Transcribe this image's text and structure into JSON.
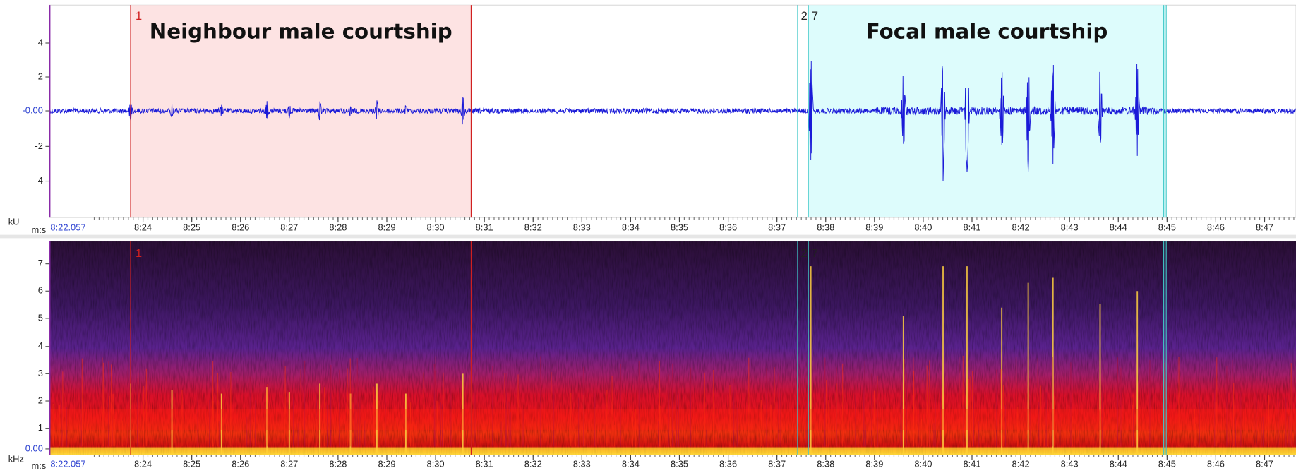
{
  "waveform": {
    "y_unit": "kU",
    "y_ticks": [
      "4",
      "2",
      "-0.00",
      "-2",
      "-4"
    ],
    "time_unit": "m:s",
    "start_time": "8:22.057",
    "time_ticks": [
      "8:24",
      "8:25",
      "8:26",
      "8:27",
      "8:28",
      "8:29",
      "8:30",
      "8:31",
      "8:32",
      "8:33",
      "8:34",
      "8:35",
      "8:36",
      "8:37",
      "8:38",
      "8:39",
      "8:40",
      "8:41",
      "8:42",
      "8:43",
      "8:44",
      "8:45",
      "8:46",
      "8:47"
    ]
  },
  "spectrogram": {
    "y_unit": "kHz",
    "y_ticks": [
      "7",
      "6",
      "5",
      "4",
      "3",
      "2",
      "1",
      "0.00"
    ],
    "time_unit": "m:s",
    "start_time": "8:22.057",
    "time_ticks": [
      "8:24",
      "8:25",
      "8:26",
      "8:27",
      "8:28",
      "8:29",
      "8:30",
      "8:31",
      "8:32",
      "8:33",
      "8:34",
      "8:35",
      "8:36",
      "8:37",
      "8:38",
      "8:39",
      "8:40",
      "8:41",
      "8:42",
      "8:43",
      "8:44",
      "8:45",
      "8:46",
      "8:47"
    ]
  },
  "selections": [
    {
      "id": "1",
      "label": "Neighbour male courtship"
    },
    {
      "id": "2"
    },
    {
      "id": "7",
      "label": "Focal male courtship"
    }
  ]
}
